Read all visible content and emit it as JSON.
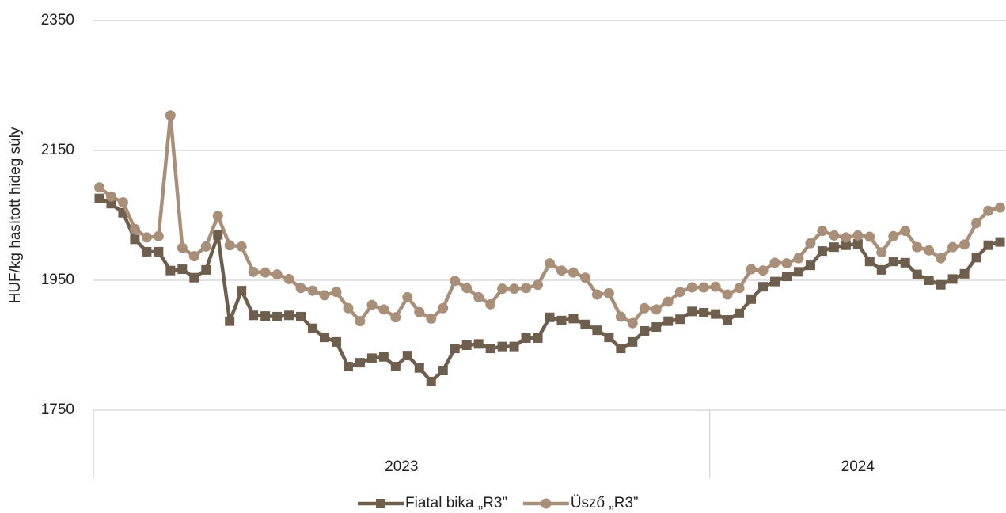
{
  "chart_data": {
    "type": "line",
    "y_label": "HUF/kg hasított hideg súly",
    "categories": [
      null,
      null,
      null,
      null,
      null,
      null,
      null,
      null,
      null,
      null,
      null,
      null,
      null,
      null,
      null,
      null,
      null,
      null,
      null,
      null,
      null,
      null,
      null,
      null,
      null,
      null,
      null,
      null,
      null,
      null,
      null,
      null,
      null,
      null,
      null,
      null,
      null,
      null,
      null,
      null,
      null,
      null,
      null,
      null,
      null,
      null,
      null,
      null,
      null,
      null,
      null,
      null,
      null,
      null,
      null,
      null,
      null,
      null,
      null,
      null,
      null,
      null,
      null,
      null,
      null,
      null,
      null,
      null,
      null,
      null,
      null,
      null,
      null,
      null,
      null,
      null,
      null
    ],
    "category_groups": [
      {
        "label": "2023",
        "size": 52
      },
      {
        "label": "2024",
        "size": 25
      }
    ],
    "series": [
      {
        "name": "Fiatal bika „R3”",
        "color": "#6e5e4e",
        "marker": "square",
        "values": [
          2076,
          2068,
          2054,
          2013,
          1994,
          1994,
          1965,
          1967,
          1954,
          1966,
          2020,
          1887,
          1934,
          1896,
          1895,
          1894,
          1896,
          1894,
          1876,
          1862,
          1855,
          1817,
          1823,
          1830,
          1832,
          1817,
          1834,
          1815,
          1794,
          1811,
          1845,
          1850,
          1852,
          1845,
          1848,
          1848,
          1861,
          1861,
          1893,
          1888,
          1891,
          1882,
          1873,
          1862,
          1845,
          1855,
          1872,
          1878,
          1887,
          1890,
          1902,
          1900,
          1898,
          1889,
          1899,
          1921,
          1940,
          1948,
          1956,
          1963,
          1973,
          1995,
          2001,
          2004,
          2006,
          1979,
          1966,
          1979,
          1977,
          1959,
          1950,
          1943,
          1952,
          1960,
          1985,
          2004,
          2009
        ]
      },
      {
        "name": "Üsző „R3”",
        "color": "#a88f7a",
        "marker": "circle",
        "values": [
          2093,
          2079,
          2070,
          2029,
          2016,
          2018,
          2204,
          2000,
          1987,
          2002,
          2049,
          2004,
          2002,
          1963,
          1962,
          1959,
          1952,
          1938,
          1934,
          1927,
          1932,
          1907,
          1887,
          1912,
          1905,
          1893,
          1924,
          1901,
          1891,
          1907,
          1949,
          1938,
          1924,
          1913,
          1937,
          1937,
          1938,
          1943,
          1976,
          1965,
          1962,
          1954,
          1928,
          1930,
          1894,
          1884,
          1907,
          1905,
          1917,
          1932,
          1939,
          1939,
          1940,
          1928,
          1938,
          1967,
          1965,
          1977,
          1976,
          1984,
          2007,
          2026,
          2019,
          2016,
          2019,
          2017,
          1993,
          2018,
          2026,
          2001,
          1996,
          1984,
          2001,
          2005,
          2038,
          2057,
          2062
        ]
      }
    ],
    "ylim": [
      1750,
      2350
    ],
    "yticks": [
      1750,
      1950,
      2150,
      2350
    ],
    "grid": true,
    "legend": "bottom"
  }
}
